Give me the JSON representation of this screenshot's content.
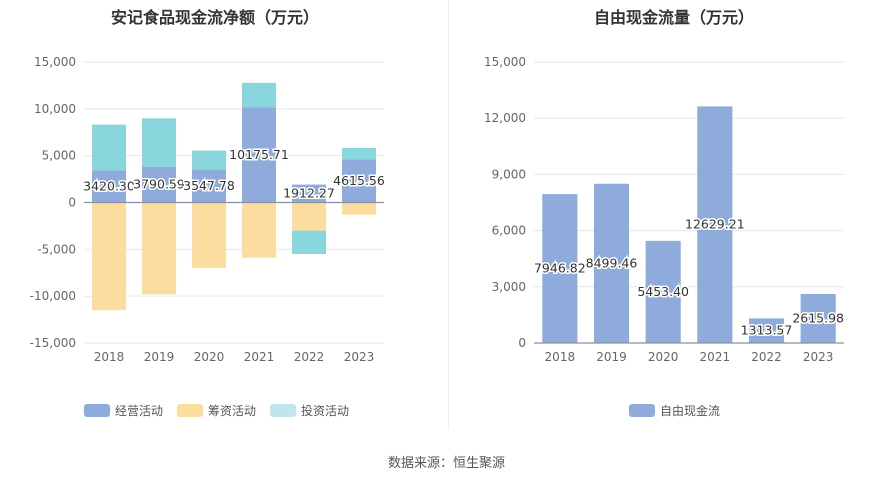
{
  "chart_data": [
    {
      "type": "bar",
      "stacked": true,
      "title": "安记食品现金流净额（万元）",
      "categories": [
        "2018",
        "2019",
        "2020",
        "2021",
        "2022",
        "2023"
      ],
      "ylim": [
        -15000,
        15000
      ],
      "yticks": [
        15000,
        10000,
        5000,
        0,
        -5000,
        -10000,
        -15000
      ],
      "ytick_labels": [
        "15,000",
        "10,000",
        "5,000",
        "0",
        "-5,000",
        "-10,000",
        "-15,000"
      ],
      "series": [
        {
          "name": "经营活动",
          "color": "#8eabdc",
          "values": [
            3420.3,
            3790.59,
            3547.78,
            10175.71,
            1912.27,
            4615.56
          ]
        },
        {
          "name": "筹资活动",
          "color": "#fddc9f",
          "values": [
            -11500,
            -9800,
            -7000,
            -5900,
            -3000,
            -1300
          ]
        },
        {
          "name": "投资活动",
          "color": "#89d6dc",
          "values": [
            4900,
            5200,
            2000,
            2600,
            -2500,
            1200
          ]
        }
      ],
      "data_labels": [
        "3420.30",
        "3790.59",
        "3547.78",
        "10175.71",
        "1912.27",
        "4615.56"
      ],
      "legend_position": "bottom-left"
    },
    {
      "type": "bar",
      "title": "自由现金流量（万元）",
      "categories": [
        "2018",
        "2019",
        "2020",
        "2021",
        "2022",
        "2023"
      ],
      "ylim": [
        0,
        15000
      ],
      "yticks": [
        15000,
        12000,
        9000,
        6000,
        3000,
        0
      ],
      "ytick_labels": [
        "15,000",
        "12,000",
        "9,000",
        "6,000",
        "3,000",
        "0"
      ],
      "series": [
        {
          "name": "自由现金流",
          "color": "#8eabdc",
          "values": [
            7946.82,
            8499.46,
            5453.4,
            12629.21,
            1313.57,
            2615.98
          ]
        }
      ],
      "data_labels": [
        "7946.82",
        "8499.46",
        "5453.40",
        "12629.21",
        "1313.57",
        "2615.98"
      ],
      "legend_position": "bottom-center"
    }
  ],
  "source_text": "数据来源：恒生聚源"
}
